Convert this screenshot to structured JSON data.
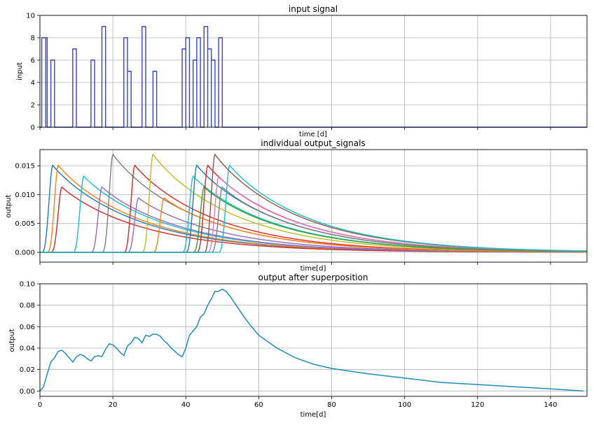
{
  "chart_data": [
    {
      "type": "line",
      "title": "input signal",
      "xlabel": "time [d]",
      "ylabel": "input",
      "xlim": [
        0,
        150
      ],
      "ylim": [
        0,
        10
      ],
      "xticks": [
        0,
        20,
        40,
        60,
        80,
        100,
        120,
        140
      ],
      "xtick_labels_visible": false,
      "yticks": [
        0,
        2,
        4,
        6,
        8,
        10
      ],
      "ytick_labels": [
        "0",
        "2",
        "4",
        "6",
        "8",
        "10"
      ],
      "grid": true,
      "colors": {
        "line": "#3644c8"
      },
      "pulses": [
        {
          "start": 0.5,
          "end": 1.6,
          "value": 8
        },
        {
          "start": 1.6,
          "end": 2.0,
          "value": 8
        },
        {
          "start": 3.0,
          "end": 4.0,
          "value": 6
        },
        {
          "start": 9.0,
          "end": 10.0,
          "value": 7
        },
        {
          "start": 14.0,
          "end": 15.0,
          "value": 6
        },
        {
          "start": 17.0,
          "end": 18.0,
          "value": 9
        },
        {
          "start": 23.0,
          "end": 24.0,
          "value": 8
        },
        {
          "start": 24.0,
          "end": 25.0,
          "value": 5
        },
        {
          "start": 28.0,
          "end": 29.0,
          "value": 9
        },
        {
          "start": 31.0,
          "end": 32.0,
          "value": 5
        },
        {
          "start": 39.0,
          "end": 40.0,
          "value": 7
        },
        {
          "start": 40.0,
          "end": 41.0,
          "value": 8
        },
        {
          "start": 42.0,
          "end": 43.0,
          "value": 6
        },
        {
          "start": 43.0,
          "end": 44.0,
          "value": 8
        },
        {
          "start": 45.0,
          "end": 46.0,
          "value": 9
        },
        {
          "start": 46.0,
          "end": 47.0,
          "value": 7
        },
        {
          "start": 47.0,
          "end": 48.0,
          "value": 6
        },
        {
          "start": 49.0,
          "end": 50.0,
          "value": 8
        }
      ]
    },
    {
      "type": "line",
      "title": "individual output_signals",
      "xlabel": "time[d]",
      "ylabel": "output",
      "xlim": [
        0,
        150
      ],
      "ylim": [
        -0.0017,
        0.0178
      ],
      "xticks": [
        0,
        20,
        40,
        60,
        80,
        100,
        120,
        140
      ],
      "xtick_labels_visible": false,
      "yticks": [
        0,
        0.005,
        0.01,
        0.015
      ],
      "ytick_labels": [
        "0.000",
        "0.005",
        "0.010",
        "0.015"
      ],
      "grid": true,
      "response_per_unit_input": {
        "peak_delay_days": 3,
        "per_unit_peak": 0.001885,
        "tail_decay_per_day": 0.042
      },
      "series": [
        {
          "onset": 0.5,
          "input": 8,
          "color": "#1f77b4"
        },
        {
          "onset": 2.0,
          "input": 8,
          "color": "#ff7f0e"
        },
        {
          "onset": 3.0,
          "input": 6,
          "color": "#d62728"
        },
        {
          "onset": 9.0,
          "input": 7,
          "color": "#17becf"
        },
        {
          "onset": 14.0,
          "input": 6,
          "color": "#9467bd"
        },
        {
          "onset": 17.0,
          "input": 9,
          "color": "#7f7f7f"
        },
        {
          "onset": 23.0,
          "input": 8,
          "color": "#d62728"
        },
        {
          "onset": 24.0,
          "input": 5,
          "color": "#9467bd"
        },
        {
          "onset": 28.0,
          "input": 9,
          "color": "#bcbd22"
        },
        {
          "onset": 31.0,
          "input": 5,
          "color": "#ff7f0e"
        },
        {
          "onset": 39.0,
          "input": 7,
          "color": "#17becf"
        },
        {
          "onset": 40.0,
          "input": 8,
          "color": "#1f77b4"
        },
        {
          "onset": 42.0,
          "input": 6,
          "color": "#2ca02c"
        },
        {
          "onset": 43.0,
          "input": 8,
          "color": "#d62728"
        },
        {
          "onset": 45.0,
          "input": 9,
          "color": "#8c564b"
        },
        {
          "onset": 46.0,
          "input": 7,
          "color": "#e377c2"
        },
        {
          "onset": 47.0,
          "input": 6,
          "color": "#7f7f7f"
        },
        {
          "onset": 49.0,
          "input": 8,
          "color": "#17becf"
        }
      ]
    },
    {
      "type": "line",
      "title": "output after superposition",
      "xlabel": "time[d]",
      "ylabel": "output",
      "xlim": [
        0,
        150
      ],
      "ylim": [
        -0.005,
        0.1
      ],
      "xticks": [
        0,
        20,
        40,
        60,
        80,
        100,
        120,
        140
      ],
      "xtick_labels": [
        "0",
        "20",
        "40",
        "60",
        "80",
        "100",
        "120",
        "140"
      ],
      "yticks": [
        0,
        0.02,
        0.04,
        0.06,
        0.08,
        0.1
      ],
      "ytick_labels": [
        "0.00",
        "0.02",
        "0.04",
        "0.06",
        "0.08",
        "0.10"
      ],
      "grid": true,
      "colors": {
        "line": "#1f8bb8"
      },
      "x": [
        0,
        1,
        2,
        3,
        4,
        5,
        6,
        7,
        8,
        9,
        10,
        11,
        12,
        13,
        14,
        15,
        16,
        17,
        18,
        19,
        20,
        21,
        22,
        23,
        24,
        25,
        26,
        27,
        28,
        29,
        30,
        31,
        32,
        33,
        34,
        35,
        36,
        37,
        38,
        39,
        40,
        41,
        42,
        43,
        44,
        45,
        46,
        47,
        48,
        49,
        50,
        51,
        52,
        54,
        56,
        58,
        60,
        65,
        70,
        75,
        80,
        90,
        100,
        110,
        120,
        130,
        140,
        149
      ],
      "y": [
        0.0,
        0.004,
        0.016,
        0.027,
        0.031,
        0.037,
        0.038,
        0.035,
        0.031,
        0.027,
        0.032,
        0.034,
        0.033,
        0.03,
        0.028,
        0.032,
        0.033,
        0.032,
        0.039,
        0.044,
        0.043,
        0.04,
        0.036,
        0.033,
        0.042,
        0.045,
        0.05,
        0.049,
        0.045,
        0.052,
        0.051,
        0.053,
        0.053,
        0.051,
        0.047,
        0.044,
        0.04,
        0.037,
        0.034,
        0.032,
        0.04,
        0.052,
        0.056,
        0.06,
        0.069,
        0.072,
        0.08,
        0.086,
        0.093,
        0.093,
        0.095,
        0.093,
        0.089,
        0.079,
        0.069,
        0.06,
        0.052,
        0.04,
        0.031,
        0.025,
        0.021,
        0.016,
        0.012,
        0.008,
        0.006,
        0.004,
        0.002,
        0.0
      ]
    }
  ]
}
